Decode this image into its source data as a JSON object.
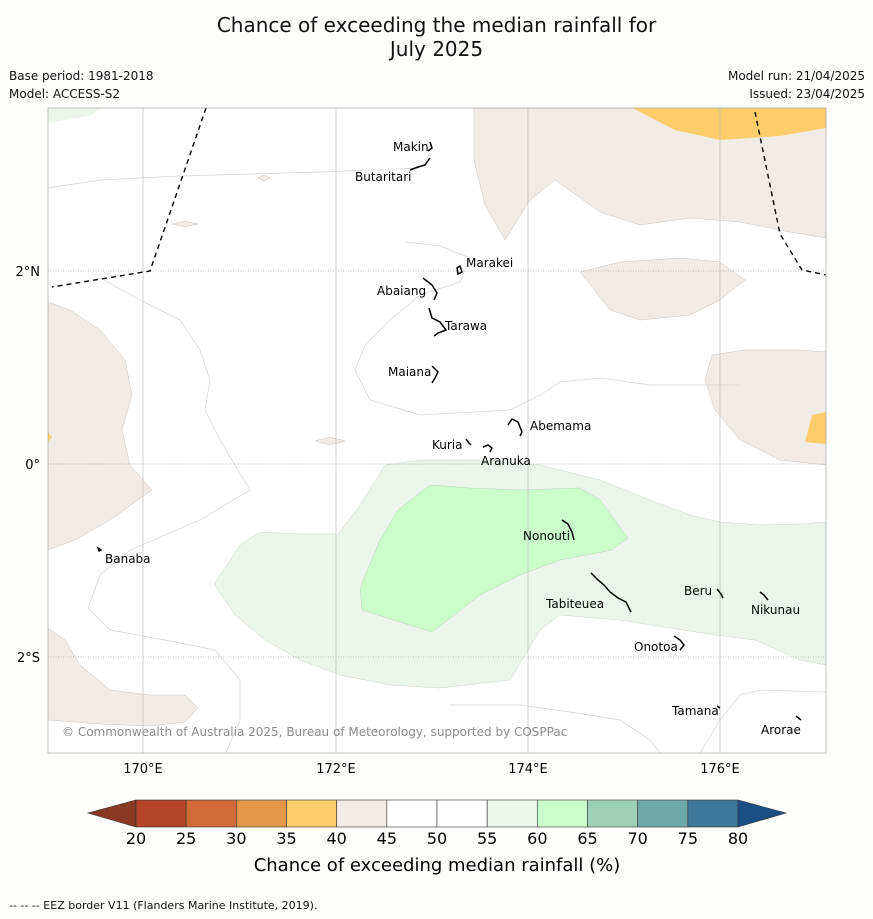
{
  "title_line1": "Chance of exceeding the median rainfall for",
  "title_line2": "July 2025",
  "base_period": "Base period: 1981-2018",
  "model": "Model: ACCESS-S2",
  "model_run": "Model run: 21/04/2025",
  "issued": "Issued: 23/04/2025",
  "copyright": "© Commonwealth of Australia 2025, Bureau of Meteorology, supported by COSPPac",
  "lat_labels": [
    "2°N",
    "0°",
    "2°S"
  ],
  "lon_labels": [
    "170°E",
    "172°E",
    "174°E",
    "176°E"
  ],
  "places": [
    "Makin",
    "Butaritari",
    "Marakei",
    "Abaiang",
    "Tarawa",
    "Maiana",
    "Abemama",
    "Kuria",
    "Aranuka",
    "Nonouti",
    "Banaba",
    "Tabiteuea",
    "Beru",
    "Nikunau",
    "Onotoa",
    "Tamana",
    "Arorae"
  ],
  "colorbar": {
    "title": "Chance of exceeding median rainfall (%)",
    "ticks": [
      "20",
      "25",
      "30",
      "35",
      "40",
      "45",
      "50",
      "55",
      "60",
      "65",
      "70",
      "75",
      "80"
    ],
    "colors": [
      "#b5452a",
      "#d06a36",
      "#e4974a",
      "#fdcd6c",
      "#f0ebe6",
      "#ffffff",
      "#ffffff",
      "#ebf5ec",
      "#cbfdcb",
      "#9dd0b7",
      "#6ea8a8",
      "#3e779a"
    ],
    "under_color": "#8a3a22",
    "over_color": "#1b4e84"
  },
  "footer": "--  --  -- EEZ border V11 (Flanders Marine Institute, 2019)."
}
